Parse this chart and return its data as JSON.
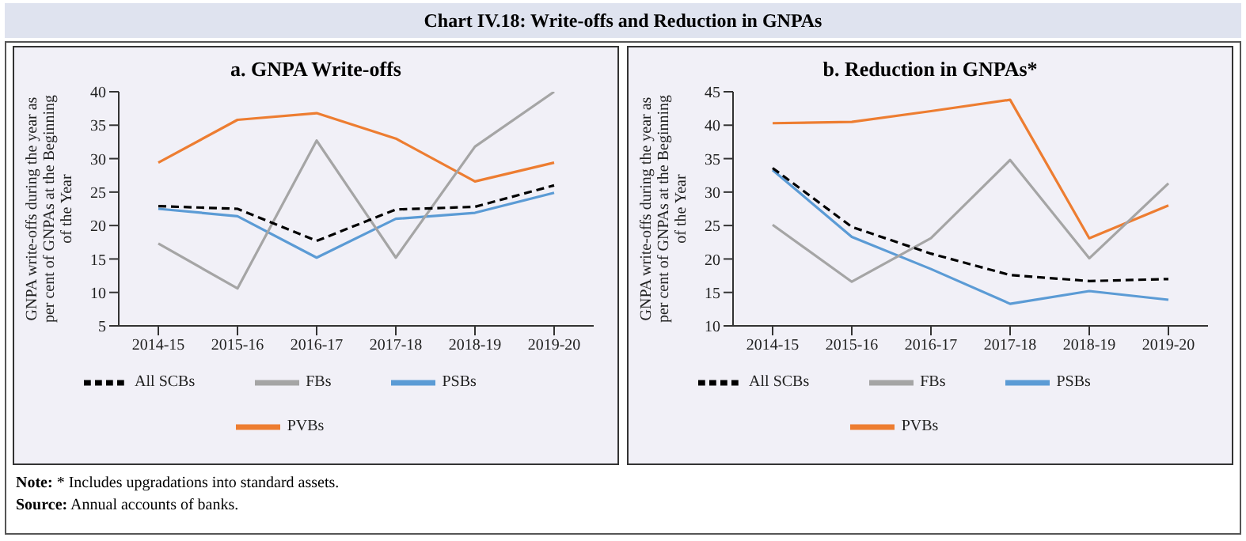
{
  "chart_data": [
    {
      "type": "line",
      "title": "a. GNPA Write-offs",
      "ylabel": "GNPA write-offs during the year as per cent of GNPAs at the Beginning of the Year",
      "annotations": [
        "Chart IV.18: Write-offs and Reduction in GNPAs"
      ],
      "categories": [
        "2014-15",
        "2015-16",
        "2016-17",
        "2017-18",
        "2018-19",
        "2019-20"
      ],
      "ylim": [
        5,
        40
      ],
      "yticks": [
        5,
        10,
        15,
        20,
        25,
        30,
        35,
        40
      ],
      "grid": false,
      "legend": "bottom",
      "marker": "none",
      "series": [
        {
          "name": "PSBs",
          "color": "#5b9bd5",
          "values": [
            22.5,
            21.4,
            15.2,
            21.0,
            21.9,
            24.9
          ]
        },
        {
          "name": "PVBs",
          "color": "#ed7d31",
          "values": [
            29.4,
            35.8,
            36.8,
            33.0,
            26.6,
            29.4
          ]
        },
        {
          "name": "FBs",
          "color": "#a5a5a5",
          "values": [
            17.3,
            10.6,
            32.7,
            15.2,
            31.8,
            40.0
          ]
        },
        {
          "name": "All SCBs",
          "color": "#000000",
          "line_style": "dashed",
          "values": [
            22.9,
            22.5,
            17.7,
            22.4,
            22.8,
            26.0
          ]
        }
      ]
    },
    {
      "type": "line",
      "title": "b. Reduction in GNPAs*",
      "ylabel": "GNPA write-offs during the year as per cent of GNPAs at the Beginning of the Year",
      "annotations": [
        "Note: * Includes upgradations into standard assets.",
        "Source: Annual accounts of banks."
      ],
      "categories": [
        "2014-15",
        "2015-16",
        "2016-17",
        "2017-18",
        "2018-19",
        "2019-20"
      ],
      "ylim": [
        10,
        45
      ],
      "yticks": [
        10,
        15,
        20,
        25,
        30,
        35,
        40,
        45
      ],
      "grid": false,
      "legend": "bottom",
      "marker": "none",
      "series": [
        {
          "name": "PSBs",
          "color": "#5b9bd5",
          "values": [
            33.3,
            23.3,
            18.5,
            13.3,
            15.2,
            13.9
          ]
        },
        {
          "name": "PVBs",
          "color": "#ed7d31",
          "values": [
            40.3,
            40.5,
            42.1,
            43.8,
            23.1,
            28.0
          ]
        },
        {
          "name": "FBs",
          "color": "#a5a5a5",
          "values": [
            25.1,
            16.6,
            23.1,
            34.8,
            20.1,
            31.3
          ]
        },
        {
          "name": "All SCBs",
          "color": "#000000",
          "line_style": "dashed",
          "values": [
            33.6,
            24.8,
            20.8,
            17.6,
            16.7,
            17.0
          ]
        }
      ]
    }
  ]
}
